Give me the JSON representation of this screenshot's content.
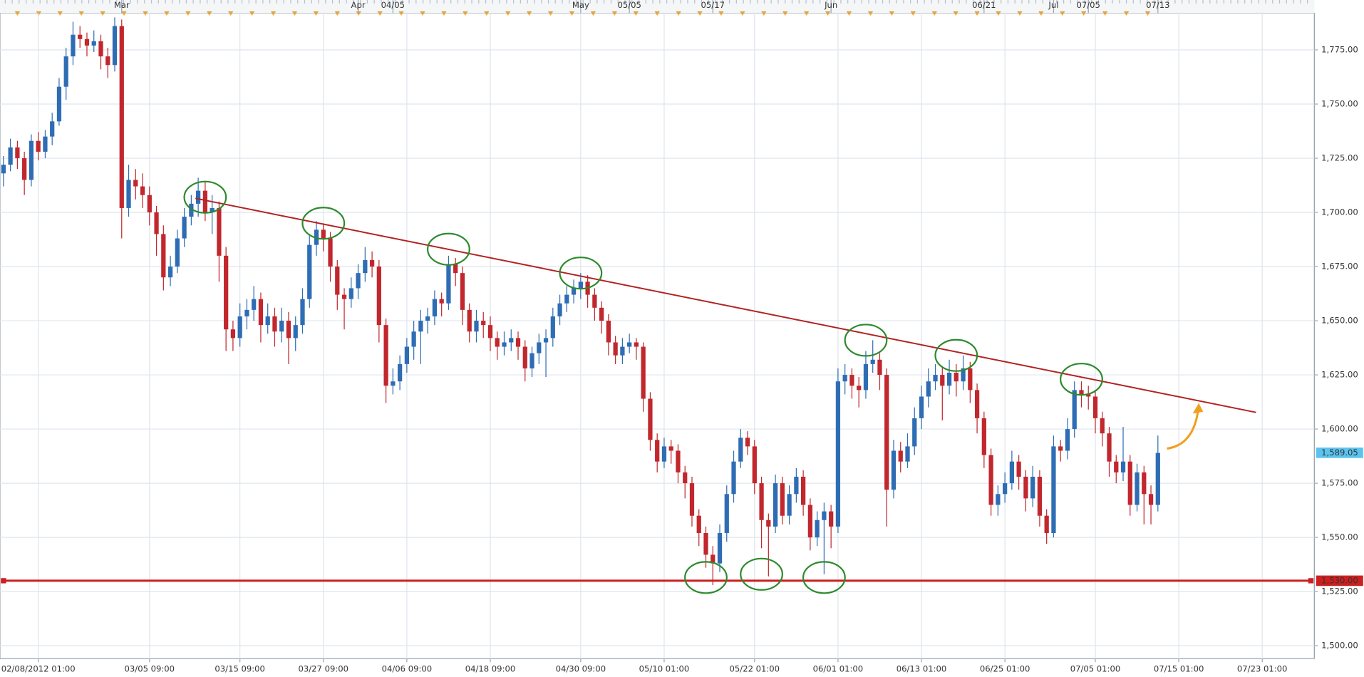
{
  "chart_data": {
    "type": "candlestick",
    "x": [
      0,
      1,
      2,
      3,
      4,
      5,
      6,
      7,
      8,
      9,
      10,
      11,
      12,
      13,
      14,
      15,
      16,
      17,
      18,
      19,
      20,
      21,
      22,
      23,
      24,
      25,
      26,
      27,
      28,
      29,
      30,
      31,
      32,
      33,
      34,
      35,
      36,
      37,
      38,
      39,
      40,
      41,
      42,
      43,
      44,
      45,
      46,
      47,
      48,
      49,
      50,
      51,
      52,
      53,
      54,
      55,
      56,
      57,
      58,
      59,
      60,
      61,
      62,
      63,
      64,
      65,
      66,
      67,
      68,
      69,
      70,
      71,
      72,
      73,
      74,
      75,
      76,
      77,
      78,
      79,
      80,
      81,
      82,
      83,
      84,
      85,
      86,
      87,
      88,
      89,
      90,
      91,
      92,
      93,
      94,
      95,
      96,
      97,
      98,
      99,
      100,
      101,
      102,
      103,
      104,
      105,
      106,
      107,
      108,
      109,
      110,
      111,
      112,
      113,
      114,
      115,
      116,
      117,
      118,
      119,
      120,
      121,
      122,
      123,
      124,
      125,
      126,
      127,
      128,
      129,
      130,
      131,
      132,
      133,
      134,
      135,
      136,
      137,
      138,
      139,
      140,
      141,
      142,
      143,
      144,
      145,
      146,
      147,
      148,
      149,
      150,
      151,
      152,
      153,
      154,
      155,
      156,
      157,
      158,
      159,
      160,
      161,
      162,
      163,
      164,
      165,
      166
    ],
    "ohlc": [
      [
        1718,
        1726,
        1712,
        1722
      ],
      [
        1722,
        1734,
        1719,
        1730
      ],
      [
        1730,
        1733,
        1720,
        1725
      ],
      [
        1725,
        1728,
        1708,
        1715
      ],
      [
        1715,
        1736,
        1712,
        1733
      ],
      [
        1733,
        1737,
        1724,
        1728
      ],
      [
        1728,
        1738,
        1725,
        1735
      ],
      [
        1735,
        1746,
        1731,
        1742
      ],
      [
        1742,
        1762,
        1740,
        1758
      ],
      [
        1758,
        1776,
        1752,
        1772
      ],
      [
        1772,
        1788,
        1768,
        1782
      ],
      [
        1782,
        1786,
        1776,
        1780
      ],
      [
        1780,
        1783,
        1772,
        1777
      ],
      [
        1777,
        1784,
        1774,
        1779
      ],
      [
        1779,
        1782,
        1766,
        1772
      ],
      [
        1772,
        1776,
        1762,
        1768
      ],
      [
        1768,
        1790,
        1765,
        1786
      ],
      [
        1786,
        1789,
        1688,
        1702
      ],
      [
        1702,
        1722,
        1698,
        1715
      ],
      [
        1715,
        1720,
        1706,
        1712
      ],
      [
        1712,
        1718,
        1702,
        1708
      ],
      [
        1708,
        1712,
        1694,
        1700
      ],
      [
        1700,
        1703,
        1680,
        1690
      ],
      [
        1690,
        1694,
        1664,
        1670
      ],
      [
        1670,
        1680,
        1666,
        1675
      ],
      [
        1675,
        1692,
        1672,
        1688
      ],
      [
        1688,
        1702,
        1684,
        1698
      ],
      [
        1698,
        1708,
        1694,
        1704
      ],
      [
        1704,
        1716,
        1698,
        1710
      ],
      [
        1710,
        1714,
        1696,
        1700
      ],
      [
        1700,
        1708,
        1690,
        1702
      ],
      [
        1702,
        1705,
        1668,
        1680
      ],
      [
        1680,
        1684,
        1636,
        1646
      ],
      [
        1646,
        1650,
        1636,
        1642
      ],
      [
        1642,
        1658,
        1638,
        1652
      ],
      [
        1652,
        1660,
        1646,
        1655
      ],
      [
        1655,
        1666,
        1650,
        1660
      ],
      [
        1660,
        1663,
        1640,
        1648
      ],
      [
        1648,
        1658,
        1644,
        1652
      ],
      [
        1652,
        1656,
        1638,
        1645
      ],
      [
        1645,
        1656,
        1640,
        1650
      ],
      [
        1650,
        1654,
        1630,
        1642
      ],
      [
        1642,
        1652,
        1636,
        1648
      ],
      [
        1648,
        1665,
        1644,
        1660
      ],
      [
        1660,
        1690,
        1656,
        1685
      ],
      [
        1685,
        1696,
        1680,
        1692
      ],
      [
        1692,
        1695,
        1682,
        1688
      ],
      [
        1688,
        1691,
        1668,
        1675
      ],
      [
        1675,
        1678,
        1655,
        1662
      ],
      [
        1662,
        1665,
        1646,
        1660
      ],
      [
        1660,
        1670,
        1656,
        1665
      ],
      [
        1665,
        1676,
        1660,
        1672
      ],
      [
        1672,
        1684,
        1668,
        1678
      ],
      [
        1678,
        1682,
        1670,
        1675
      ],
      [
        1675,
        1678,
        1640,
        1648
      ],
      [
        1648,
        1651,
        1612,
        1620
      ],
      [
        1620,
        1628,
        1616,
        1622
      ],
      [
        1622,
        1634,
        1618,
        1630
      ],
      [
        1630,
        1642,
        1626,
        1638
      ],
      [
        1638,
        1650,
        1632,
        1645
      ],
      [
        1645,
        1655,
        1630,
        1650
      ],
      [
        1650,
        1656,
        1644,
        1652
      ],
      [
        1652,
        1664,
        1648,
        1660
      ],
      [
        1660,
        1663,
        1652,
        1658
      ],
      [
        1658,
        1680,
        1655,
        1676
      ],
      [
        1676,
        1679,
        1666,
        1672
      ],
      [
        1672,
        1675,
        1648,
        1655
      ],
      [
        1655,
        1658,
        1640,
        1645
      ],
      [
        1645,
        1655,
        1640,
        1650
      ],
      [
        1650,
        1654,
        1642,
        1648
      ],
      [
        1648,
        1652,
        1636,
        1642
      ],
      [
        1642,
        1645,
        1632,
        1638
      ],
      [
        1638,
        1645,
        1634,
        1640
      ],
      [
        1640,
        1646,
        1636,
        1642
      ],
      [
        1642,
        1645,
        1632,
        1638
      ],
      [
        1638,
        1641,
        1622,
        1628
      ],
      [
        1628,
        1638,
        1624,
        1635
      ],
      [
        1635,
        1644,
        1630,
        1640
      ],
      [
        1640,
        1646,
        1624,
        1642
      ],
      [
        1642,
        1656,
        1638,
        1652
      ],
      [
        1652,
        1662,
        1648,
        1658
      ],
      [
        1658,
        1666,
        1654,
        1662
      ],
      [
        1662,
        1669,
        1658,
        1665
      ],
      [
        1665,
        1672,
        1660,
        1668
      ],
      [
        1668,
        1671,
        1656,
        1662
      ],
      [
        1662,
        1665,
        1650,
        1656
      ],
      [
        1656,
        1659,
        1644,
        1650
      ],
      [
        1650,
        1653,
        1634,
        1640
      ],
      [
        1640,
        1643,
        1630,
        1634
      ],
      [
        1634,
        1642,
        1630,
        1638
      ],
      [
        1638,
        1644,
        1635,
        1640
      ],
      [
        1640,
        1642,
        1632,
        1638
      ],
      [
        1638,
        1640,
        1608,
        1614
      ],
      [
        1614,
        1617,
        1590,
        1595
      ],
      [
        1595,
        1598,
        1580,
        1585
      ],
      [
        1585,
        1596,
        1582,
        1592
      ],
      [
        1592,
        1595,
        1584,
        1590
      ],
      [
        1590,
        1593,
        1575,
        1580
      ],
      [
        1580,
        1583,
        1568,
        1575
      ],
      [
        1575,
        1578,
        1555,
        1560
      ],
      [
        1560,
        1563,
        1546,
        1552
      ],
      [
        1552,
        1555,
        1536,
        1542
      ],
      [
        1542,
        1546,
        1528,
        1538
      ],
      [
        1538,
        1556,
        1534,
        1552
      ],
      [
        1552,
        1574,
        1548,
        1570
      ],
      [
        1570,
        1590,
        1566,
        1585
      ],
      [
        1585,
        1600,
        1582,
        1596
      ],
      [
        1596,
        1599,
        1588,
        1592
      ],
      [
        1592,
        1595,
        1570,
        1575
      ],
      [
        1575,
        1578,
        1545,
        1558
      ],
      [
        1558,
        1561,
        1532,
        1555
      ],
      [
        1555,
        1579,
        1552,
        1575
      ],
      [
        1575,
        1578,
        1556,
        1560
      ],
      [
        1560,
        1574,
        1556,
        1570
      ],
      [
        1570,
        1582,
        1566,
        1578
      ],
      [
        1578,
        1581,
        1560,
        1565
      ],
      [
        1565,
        1568,
        1544,
        1550
      ],
      [
        1550,
        1562,
        1546,
        1558
      ],
      [
        1558,
        1566,
        1533,
        1562
      ],
      [
        1562,
        1565,
        1545,
        1555
      ],
      [
        1555,
        1628,
        1552,
        1622
      ],
      [
        1622,
        1630,
        1616,
        1625
      ],
      [
        1625,
        1628,
        1614,
        1620
      ],
      [
        1620,
        1624,
        1610,
        1618
      ],
      [
        1618,
        1636,
        1614,
        1630
      ],
      [
        1630,
        1641,
        1626,
        1632
      ],
      [
        1632,
        1635,
        1618,
        1625
      ],
      [
        1625,
        1628,
        1555,
        1572
      ],
      [
        1572,
        1595,
        1568,
        1590
      ],
      [
        1590,
        1594,
        1580,
        1585
      ],
      [
        1585,
        1598,
        1582,
        1592
      ],
      [
        1592,
        1610,
        1588,
        1605
      ],
      [
        1605,
        1620,
        1600,
        1615
      ],
      [
        1615,
        1628,
        1610,
        1622
      ],
      [
        1622,
        1630,
        1618,
        1625
      ],
      [
        1625,
        1629,
        1604,
        1620
      ],
      [
        1620,
        1632,
        1616,
        1626
      ],
      [
        1626,
        1630,
        1615,
        1622
      ],
      [
        1622,
        1634,
        1618,
        1628
      ],
      [
        1628,
        1631,
        1612,
        1618
      ],
      [
        1618,
        1621,
        1598,
        1605
      ],
      [
        1605,
        1608,
        1582,
        1588
      ],
      [
        1588,
        1591,
        1560,
        1565
      ],
      [
        1565,
        1574,
        1560,
        1570
      ],
      [
        1570,
        1580,
        1566,
        1575
      ],
      [
        1575,
        1590,
        1572,
        1585
      ],
      [
        1585,
        1588,
        1572,
        1578
      ],
      [
        1578,
        1581,
        1562,
        1568
      ],
      [
        1568,
        1583,
        1564,
        1578
      ],
      [
        1578,
        1581,
        1555,
        1560
      ],
      [
        1560,
        1563,
        1547,
        1552
      ],
      [
        1552,
        1597,
        1550,
        1592
      ],
      [
        1592,
        1595,
        1585,
        1590
      ],
      [
        1590,
        1605,
        1586,
        1600
      ],
      [
        1600,
        1622,
        1596,
        1618
      ],
      [
        1618,
        1622,
        1610,
        1616
      ],
      [
        1616,
        1620,
        1609,
        1615
      ],
      [
        1615,
        1618,
        1598,
        1605
      ],
      [
        1605,
        1608,
        1592,
        1598
      ],
      [
        1598,
        1601,
        1578,
        1585
      ],
      [
        1585,
        1588,
        1575,
        1580
      ],
      [
        1580,
        1601,
        1576,
        1585
      ],
      [
        1585,
        1588,
        1560,
        1565
      ],
      [
        1565,
        1584,
        1562,
        1580
      ],
      [
        1580,
        1583,
        1556,
        1570
      ],
      [
        1570,
        1574,
        1556,
        1565
      ],
      [
        1565,
        1597,
        1562,
        1589
      ]
    ],
    "up_color": "#2e6db4",
    "down_color": "#c1272d",
    "xlim": [
      -0.5,
      188.5
    ],
    "xticks": [
      {
        "value": 5,
        "label": "02/08/2012 01:00"
      },
      {
        "value": 21,
        "label": "03/05 09:00"
      },
      {
        "value": 34,
        "label": "03/15 09:00"
      },
      {
        "value": 46,
        "label": "03/27 09:00"
      },
      {
        "value": 58,
        "label": "04/06 09:00"
      },
      {
        "value": 70,
        "label": "04/18 09:00"
      },
      {
        "value": 83,
        "label": "04/30 09:00"
      },
      {
        "value": 95,
        "label": "05/10 01:00"
      },
      {
        "value": 108,
        "label": "05/22 01:00"
      },
      {
        "value": 120,
        "label": "06/01 01:00"
      },
      {
        "value": 132,
        "label": "06/13 01:00"
      },
      {
        "value": 144,
        "label": "06/25 01:00"
      },
      {
        "value": 157,
        "label": "07/05 01:00"
      },
      {
        "value": 169,
        "label": "07/15 01:00"
      },
      {
        "value": 181,
        "label": "07/23 01:00"
      }
    ],
    "x2ticks": [
      {
        "value": 17,
        "label": "Mar"
      },
      {
        "value": 51,
        "label": "Apr"
      },
      {
        "value": 56,
        "label": "04/05"
      },
      {
        "value": 83,
        "label": "May"
      },
      {
        "value": 90,
        "label": "05/05"
      },
      {
        "value": 102,
        "label": "05/17"
      },
      {
        "value": 119,
        "label": "Jun"
      },
      {
        "value": 141,
        "label": "06/21"
      },
      {
        "value": 151,
        "label": "Jul"
      },
      {
        "value": 156,
        "label": "07/05"
      },
      {
        "value": 166,
        "label": "07/13"
      }
    ],
    "ylim": [
      1494,
      1792
    ],
    "yticks": [
      {
        "value": 1500,
        "label": "1,500.00"
      },
      {
        "value": 1525,
        "label": "1,525.00"
      },
      {
        "value": 1550,
        "label": "1,550.00"
      },
      {
        "value": 1575,
        "label": "1,575.00"
      },
      {
        "value": 1600,
        "label": "1,600.00"
      },
      {
        "value": 1625,
        "label": "1,625.00"
      },
      {
        "value": 1650,
        "label": "1,650.00"
      },
      {
        "value": 1675,
        "label": "1,675.00"
      },
      {
        "value": 1700,
        "label": "1,700.00"
      },
      {
        "value": 1725,
        "label": "1,725.00"
      },
      {
        "value": 1750,
        "label": "1,750.00"
      },
      {
        "value": 1775,
        "label": "1,775.00"
      }
    ],
    "grid": true,
    "hlines": [
      {
        "value": 1530,
        "label": "1,530.00",
        "color": "#cc1f1f"
      }
    ],
    "last_price": {
      "value": 1589.05,
      "label": "1,589.05",
      "color": "#5bc3ef"
    },
    "trendline": {
      "x": [
        27.6,
        180.1
      ],
      "y": [
        1706.5,
        1607.7
      ],
      "color": "#b22222"
    },
    "circles": {
      "x": [
        29,
        46,
        64,
        83,
        124,
        137,
        155,
        101,
        109,
        118
      ],
      "y": [
        1707,
        1695,
        1683,
        1672,
        1641,
        1634,
        1623,
        1531.5,
        1533,
        1531.5
      ],
      "color": "#2d8a2d"
    },
    "arrow": {
      "x": [
        167.3,
        172
      ],
      "y": [
        1591,
        1612
      ],
      "color": "#f0a020"
    }
  }
}
